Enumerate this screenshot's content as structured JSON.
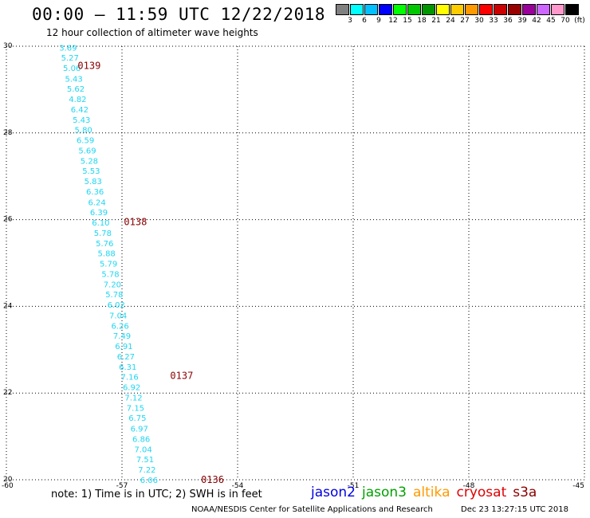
{
  "title": "00:00 – 11:59 UTC 12/22/2018",
  "subtitle": "12 hour collection of altimeter wave heights",
  "colorbar": {
    "colors": [
      "#808080",
      "#00ffff",
      "#00c0ff",
      "#0000ff",
      "#00ff00",
      "#00c800",
      "#009600",
      "#ffff00",
      "#ffcc00",
      "#ff9900",
      "#ff0000",
      "#cc0000",
      "#990000",
      "#990099",
      "#cc66ff",
      "#ff99cc",
      "#000000"
    ],
    "labels": [
      "3",
      "6",
      "9",
      "12",
      "15",
      "18",
      "21",
      "24",
      "27",
      "30",
      "33",
      "36",
      "39",
      "42",
      "45",
      "70",
      "(ft)"
    ]
  },
  "note": "note: 1) Time is in UTC; 2) SWH is in feet",
  "satellites": [
    {
      "name": "jason2",
      "color": "#0000e0"
    },
    {
      "name": "jason3",
      "color": "#00a000"
    },
    {
      "name": "altika",
      "color": "#ff9900"
    },
    {
      "name": "cryosat",
      "color": "#e00000"
    },
    {
      "name": "s3a",
      "color": "#8b0000"
    }
  ],
  "footer_left": "NOAA/NESDIS Center for Satellite Applications and Research",
  "footer_right": "Dec 23 13:27:15 UTC 2018",
  "chart_data": {
    "type": "scatter",
    "title": "00:00 – 11:59 UTC 12/22/2018",
    "subtitle": "12 hour collection of altimeter wave heights",
    "xlim": [
      -60,
      -45
    ],
    "ylim": [
      20,
      30
    ],
    "x_ticks": [
      "-60",
      "-57",
      "-54",
      "-51",
      "-48",
      "-45"
    ],
    "y_ticks": [
      "20",
      "22",
      "24",
      "26",
      "28",
      "30"
    ],
    "grid": true,
    "label_color": "#1fd6f2",
    "swh_points": [
      {
        "x": -58.4,
        "y": 29.97,
        "v": "3.69"
      },
      {
        "x": -58.35,
        "y": 29.74,
        "v": "5.27"
      },
      {
        "x": -58.3,
        "y": 29.5,
        "v": "5.06"
      },
      {
        "x": -58.25,
        "y": 29.26,
        "v": "5.43"
      },
      {
        "x": -58.2,
        "y": 29.03,
        "v": "5.62"
      },
      {
        "x": -58.15,
        "y": 28.79,
        "v": "4.82"
      },
      {
        "x": -58.1,
        "y": 28.55,
        "v": "6.42"
      },
      {
        "x": -58.05,
        "y": 28.31,
        "v": "5.43"
      },
      {
        "x": -58.0,
        "y": 28.08,
        "v": "5.80"
      },
      {
        "x": -57.95,
        "y": 27.84,
        "v": "6.59"
      },
      {
        "x": -57.9,
        "y": 27.6,
        "v": "5.69"
      },
      {
        "x": -57.85,
        "y": 27.36,
        "v": "5.28"
      },
      {
        "x": -57.8,
        "y": 27.13,
        "v": "5.53"
      },
      {
        "x": -57.75,
        "y": 26.89,
        "v": "5.83"
      },
      {
        "x": -57.7,
        "y": 26.65,
        "v": "6.36"
      },
      {
        "x": -57.65,
        "y": 26.41,
        "v": "6.24"
      },
      {
        "x": -57.6,
        "y": 26.18,
        "v": "6.39"
      },
      {
        "x": -57.55,
        "y": 25.94,
        "v": "6.10"
      },
      {
        "x": -57.5,
        "y": 25.7,
        "v": "5.78"
      },
      {
        "x": -57.45,
        "y": 25.46,
        "v": "5.76"
      },
      {
        "x": -57.4,
        "y": 25.23,
        "v": "5.88"
      },
      {
        "x": -57.35,
        "y": 24.99,
        "v": "5.79"
      },
      {
        "x": -57.3,
        "y": 24.75,
        "v": "5.78"
      },
      {
        "x": -57.25,
        "y": 24.51,
        "v": "7.20"
      },
      {
        "x": -57.2,
        "y": 24.28,
        "v": "5.78"
      },
      {
        "x": -57.15,
        "y": 24.04,
        "v": "6.02"
      },
      {
        "x": -57.1,
        "y": 23.8,
        "v": "7.04"
      },
      {
        "x": -57.05,
        "y": 23.56,
        "v": "6.26"
      },
      {
        "x": -57.0,
        "y": 23.33,
        "v": "7.49"
      },
      {
        "x": -56.95,
        "y": 23.09,
        "v": "6.91"
      },
      {
        "x": -56.9,
        "y": 22.85,
        "v": "6.27"
      },
      {
        "x": -56.85,
        "y": 22.61,
        "v": "6.31"
      },
      {
        "x": -56.8,
        "y": 22.38,
        "v": "7.16"
      },
      {
        "x": -56.75,
        "y": 22.14,
        "v": "6.92"
      },
      {
        "x": -56.7,
        "y": 21.9,
        "v": "7.12"
      },
      {
        "x": -56.65,
        "y": 21.66,
        "v": "7.15"
      },
      {
        "x": -56.6,
        "y": 21.43,
        "v": "6.75"
      },
      {
        "x": -56.55,
        "y": 21.19,
        "v": "6.97"
      },
      {
        "x": -56.5,
        "y": 20.95,
        "v": "6.86"
      },
      {
        "x": -56.45,
        "y": 20.71,
        "v": "7.04"
      },
      {
        "x": -56.4,
        "y": 20.48,
        "v": "7.51"
      },
      {
        "x": -56.35,
        "y": 20.24,
        "v": "7.22"
      },
      {
        "x": -56.3,
        "y": 20.0,
        "v": "6.06"
      }
    ],
    "pass_labels": [
      {
        "x": -58.15,
        "y": 29.55,
        "text": "0139"
      },
      {
        "x": -56.95,
        "y": 25.95,
        "text": "0138"
      },
      {
        "x": -55.75,
        "y": 22.4,
        "text": "0137"
      },
      {
        "x": -54.95,
        "y": 20.0,
        "text": "0136"
      }
    ]
  }
}
